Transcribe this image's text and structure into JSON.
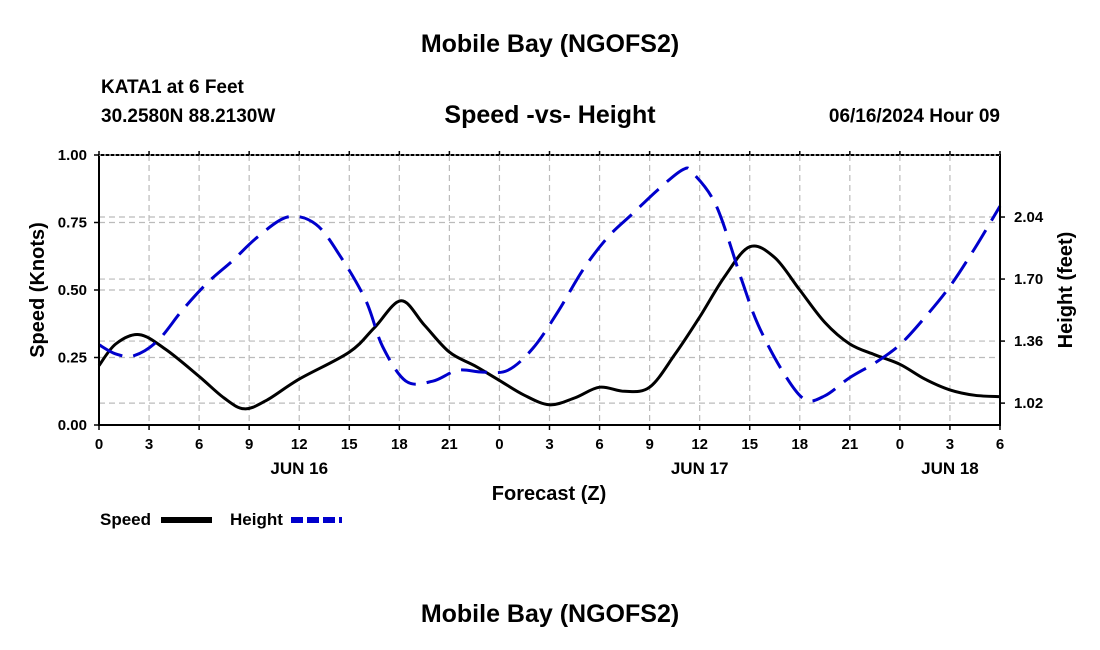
{
  "header": {
    "title": "Mobile Bay (NGOFS2)",
    "station": "KATA1 at 6 Feet",
    "coords": "30.2580N  88.2130W",
    "subtitle": "Speed -vs- Height",
    "datetime": "06/16/2024 Hour 09"
  },
  "footer": {
    "title": "Mobile Bay (NGOFS2)"
  },
  "colors": {
    "speed": "#000000",
    "height": "#0000cc",
    "grid": "#bbbbbb"
  },
  "chart_data": {
    "type": "line",
    "title": "Speed -vs- Height",
    "xlabel": "Forecast (Z)",
    "ylabel_left": "Speed (Knots)",
    "ylabel_right": "Height (feet)",
    "x_unit": "hours from 2024-06-16 00Z",
    "xlim": [
      0,
      54
    ],
    "ylim_left": [
      0,
      1.0
    ],
    "ylim_right": [
      0.9,
      2.38
    ],
    "x_ticks": [
      0,
      3,
      6,
      9,
      12,
      15,
      18,
      21,
      24,
      27,
      30,
      33,
      36,
      39,
      42,
      45,
      48,
      51,
      54
    ],
    "x_tick_labels": [
      "0",
      "3",
      "6",
      "9",
      "12",
      "15",
      "18",
      "21",
      "0",
      "3",
      "6",
      "9",
      "12",
      "15",
      "18",
      "21",
      "0",
      "3",
      "6"
    ],
    "date_labels": [
      {
        "x": 12,
        "label": "JUN 16"
      },
      {
        "x": 36,
        "label": "JUN 17"
      },
      {
        "x": 51,
        "label": "JUN 18"
      }
    ],
    "y_left_ticks": [
      0,
      0.25,
      0.5,
      0.75,
      1.0
    ],
    "y_left_tick_labels": [
      "0.00",
      "0.25",
      "0.50",
      "0.75",
      "1.00"
    ],
    "y_right_ticks": [
      1.02,
      1.36,
      1.7,
      2.04
    ],
    "y_right_tick_labels": [
      "1.02",
      "1.36",
      "1.70",
      "2.04"
    ],
    "grid": true,
    "legend_placement": "bottom-left",
    "series": [
      {
        "name": "Speed",
        "axis": "left",
        "style": "solid",
        "x": [
          0,
          1,
          2.4,
          4,
          6,
          7.5,
          8.7,
          10,
          12,
          15,
          16.5,
          18.1,
          19.5,
          21,
          22.5,
          24,
          25.5,
          27,
          28.5,
          30,
          31.5,
          33,
          34.5,
          36,
          37.5,
          39,
          40.5,
          42,
          43.5,
          45,
          46.5,
          48,
          49.5,
          51,
          52.5,
          54
        ],
        "values": [
          0.22,
          0.3,
          0.335,
          0.28,
          0.18,
          0.1,
          0.06,
          0.09,
          0.17,
          0.27,
          0.36,
          0.46,
          0.37,
          0.27,
          0.22,
          0.165,
          0.11,
          0.075,
          0.1,
          0.14,
          0.125,
          0.14,
          0.26,
          0.4,
          0.55,
          0.66,
          0.62,
          0.5,
          0.38,
          0.3,
          0.26,
          0.225,
          0.17,
          0.13,
          0.11,
          0.105
        ]
      },
      {
        "name": "Height",
        "axis": "right",
        "style": "dashed",
        "x": [
          0,
          1,
          2.1,
          3.5,
          5,
          6.5,
          8,
          9.5,
          11.3,
          13,
          14.5,
          16,
          17,
          18.4,
          20,
          21.5,
          23,
          24.5,
          26,
          27.5,
          29,
          30.5,
          32,
          33.5,
          35,
          35.6,
          37,
          38.5,
          39.5,
          41,
          42.3,
          43.5,
          45,
          46.5,
          48,
          49.5,
          51,
          52.5,
          54
        ],
        "values": [
          1.34,
          1.29,
          1.28,
          1.36,
          1.53,
          1.68,
          1.8,
          1.93,
          2.04,
          2.0,
          1.82,
          1.58,
          1.33,
          1.14,
          1.14,
          1.2,
          1.19,
          1.2,
          1.32,
          1.52,
          1.75,
          1.93,
          2.06,
          2.19,
          2.3,
          2.28,
          2.1,
          1.7,
          1.45,
          1.19,
          1.04,
          1.06,
          1.16,
          1.24,
          1.34,
          1.49,
          1.66,
          1.87,
          2.1
        ]
      }
    ]
  }
}
